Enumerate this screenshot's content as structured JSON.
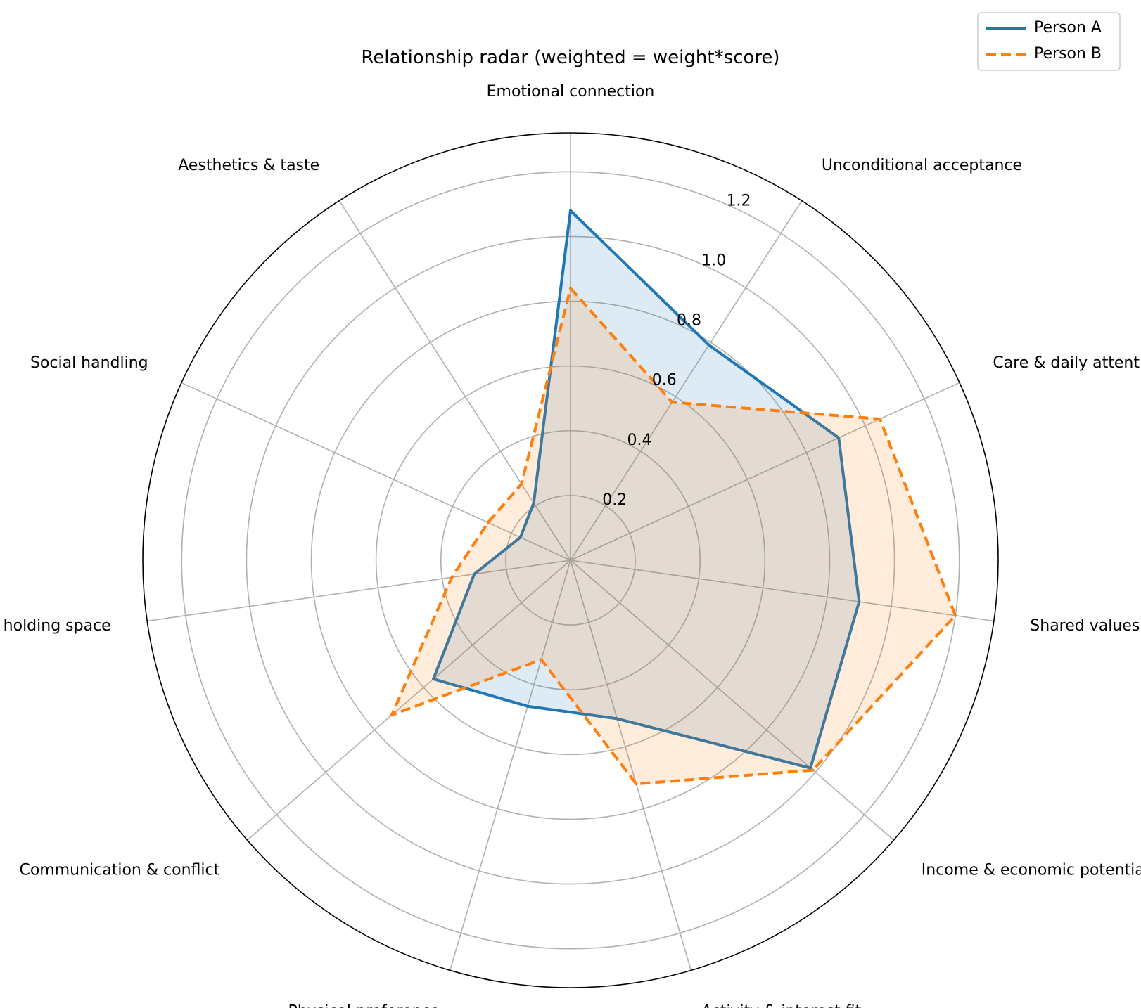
{
  "chart_data": {
    "type": "radar",
    "title": "Relationship radar (weighted = weight*score)",
    "axes": [
      "Emotional connection",
      "Unconditional acceptance",
      "Care & daily attentiveness",
      "Shared values & life goals",
      "Income & economic potential",
      "Activity & interest fit",
      "Physical preference",
      "Communication & conflict",
      "Patience & holding space",
      "Social handling",
      "Aesthetics & taste"
    ],
    "r_ticks": [
      0.2,
      0.4,
      0.6,
      0.8,
      1.0,
      1.2
    ],
    "r_tick_labels": [
      "0.2",
      "0.4",
      "0.6",
      "0.8",
      "1.0",
      "1.2"
    ],
    "r_max": 1.32,
    "grid": true,
    "legend_position": "top-right",
    "series": [
      {
        "name": "Person A",
        "values": [
          1.08,
          0.79,
          0.91,
          0.9,
          0.98,
          0.51,
          0.47,
          0.56,
          0.3,
          0.17,
          0.21
        ],
        "color": "#1f77b4",
        "line_style": "solid"
      },
      {
        "name": "Person B",
        "values": [
          0.84,
          0.58,
          1.05,
          1.2,
          0.99,
          0.72,
          0.32,
          0.73,
          0.37,
          0.28,
          0.28
        ],
        "color": "#ff7f0e",
        "line_style": "dashed"
      }
    ]
  }
}
